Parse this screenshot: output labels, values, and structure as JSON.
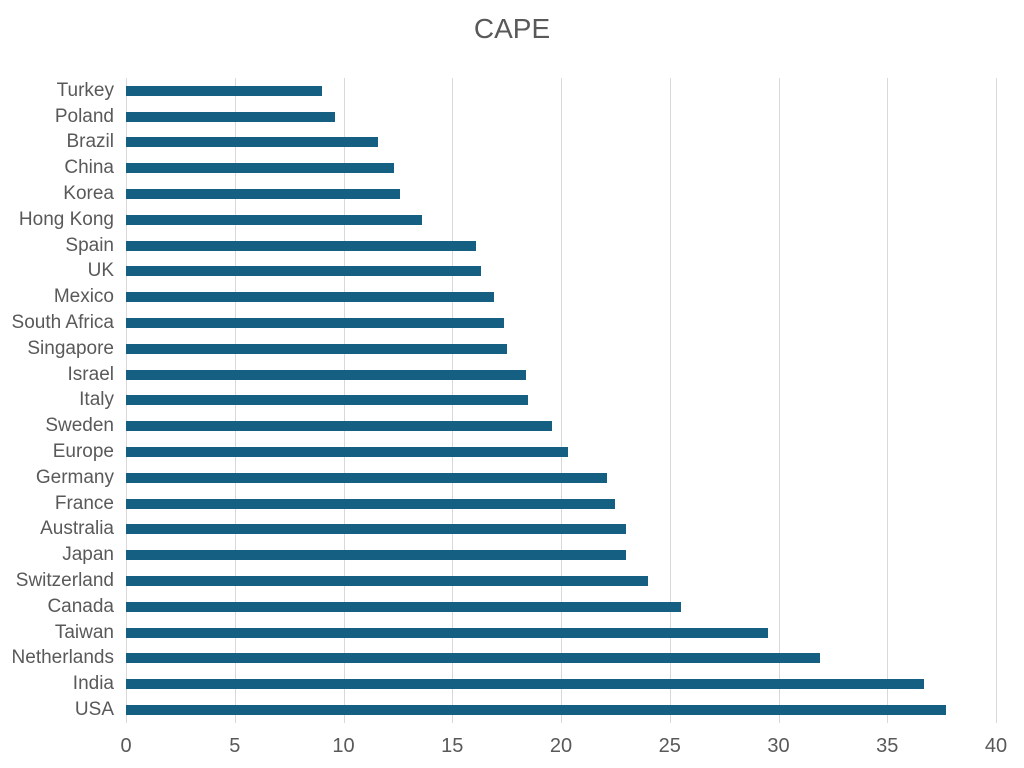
{
  "chart_data": {
    "type": "bar",
    "orientation": "horizontal",
    "title": "CAPE",
    "categories": [
      "Turkey",
      "Poland",
      "Brazil",
      "China",
      "Korea",
      "Hong Kong",
      "Spain",
      "UK",
      "Mexico",
      "South Africa",
      "Singapore",
      "Israel",
      "Italy",
      "Sweden",
      "Europe",
      "Germany",
      "France",
      "Australia",
      "Japan",
      "Switzerland",
      "Canada",
      "Taiwan",
      "Netherlands",
      "India",
      "USA"
    ],
    "values": [
      9.0,
      9.6,
      11.6,
      12.3,
      12.6,
      13.6,
      16.1,
      16.3,
      16.9,
      17.4,
      17.5,
      18.4,
      18.5,
      19.6,
      20.3,
      22.1,
      22.5,
      23.0,
      23.0,
      24.0,
      25.5,
      29.5,
      31.9,
      36.7,
      37.7
    ],
    "xlabel": "",
    "ylabel": "",
    "xlim": [
      0,
      40
    ],
    "xticks": [
      0,
      5,
      10,
      15,
      20,
      25,
      30,
      35,
      40
    ],
    "grid": "vertical-only",
    "legend": "none",
    "bar_color": "#156082",
    "gridline_color": "#d9d9d9",
    "text_color": "#595959",
    "background_color": "#ffffff"
  }
}
